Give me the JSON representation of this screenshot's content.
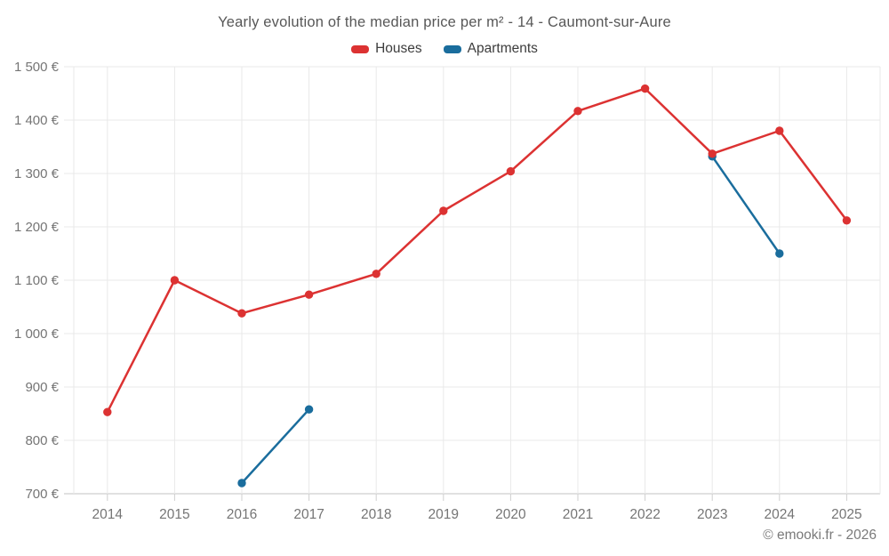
{
  "chart_data": {
    "type": "line",
    "title": "Yearly evolution of the median price per m² - 14 - Caumont-sur-Aure",
    "categories": [
      "2014",
      "2015",
      "2016",
      "2017",
      "2018",
      "2019",
      "2020",
      "2021",
      "2022",
      "2023",
      "2024",
      "2025"
    ],
    "series": [
      {
        "name": "Houses",
        "color": "#dc3232",
        "values": [
          853,
          1100,
          1038,
          1073,
          1112,
          1230,
          1304,
          1417,
          1459,
          1337,
          1380,
          1212
        ]
      },
      {
        "name": "Apartments",
        "color": "#1a6d9d",
        "values": [
          null,
          null,
          720,
          858,
          null,
          null,
          null,
          null,
          null,
          1332,
          1150,
          null
        ]
      }
    ],
    "xlabel": "",
    "ylabel": "",
    "ylim": [
      700,
      1500
    ],
    "grid": true,
    "legend_position": "top",
    "y_ticks": [
      {
        "value": 700,
        "label": "700 €"
      },
      {
        "value": 800,
        "label": "800 €"
      },
      {
        "value": 900,
        "label": "900 €"
      },
      {
        "value": 1000,
        "label": "1 000 €"
      },
      {
        "value": 1100,
        "label": "1 100 €"
      },
      {
        "value": 1200,
        "label": "1 200 €"
      },
      {
        "value": 1300,
        "label": "1 300 €"
      },
      {
        "value": 1400,
        "label": "1 400 €"
      },
      {
        "value": 1500,
        "label": "1 500 €"
      }
    ]
  },
  "footer": {
    "copyright": "© emooki.fr - 2026"
  },
  "colors": {
    "background": "#ffffff",
    "grid": "#e9e9e9",
    "axis": "#cfcfcf",
    "tick_label": "#757575",
    "title": "#575757",
    "legend_text": "#3d3d3d",
    "copyright": "#7a7a7a"
  }
}
